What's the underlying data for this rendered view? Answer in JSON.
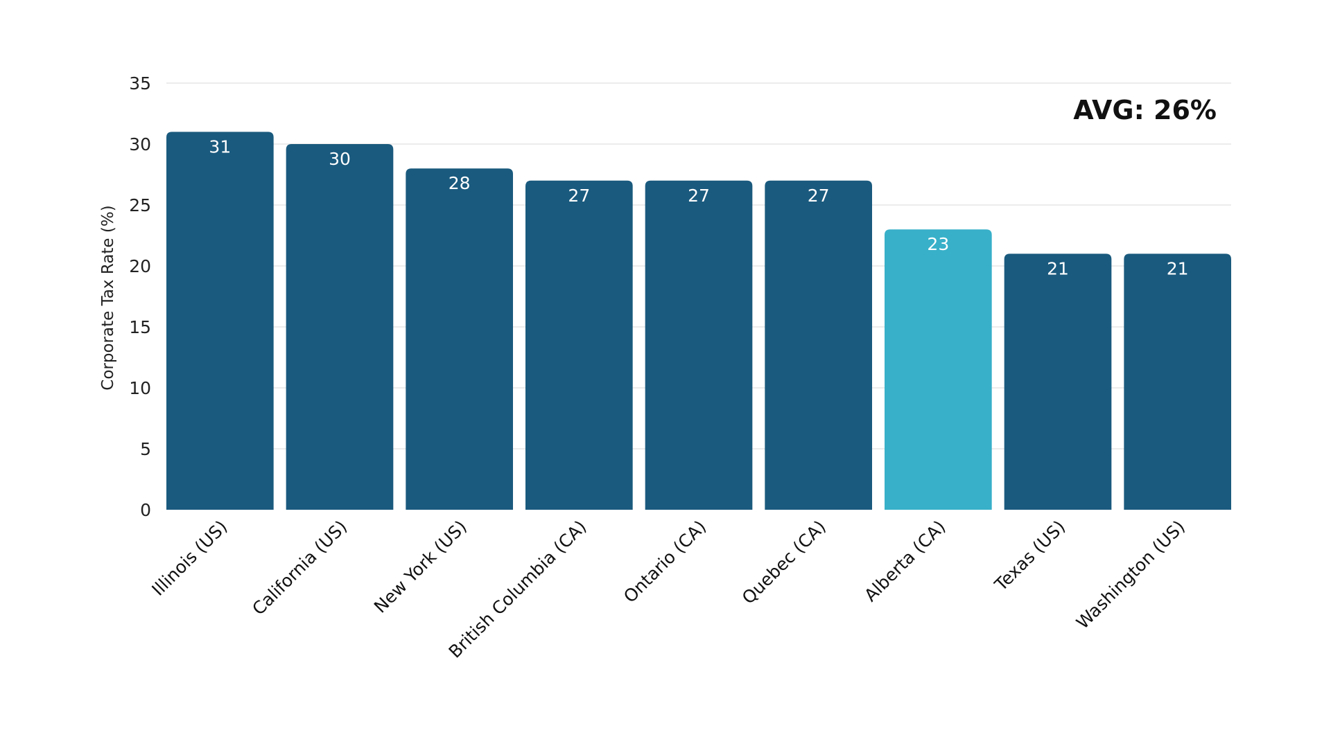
{
  "chart_data": {
    "type": "bar",
    "title": "",
    "xlabel": "",
    "ylabel": "Corporate Tax Rate (%)",
    "ylim": [
      0,
      35
    ],
    "yticks": [
      0,
      5,
      10,
      15,
      20,
      25,
      30,
      35
    ],
    "grid": true,
    "categories": [
      "Illinois (US)",
      "California (US)",
      "New York (US)",
      "British Columbia (CA)",
      "Ontario (CA)",
      "Quebec (CA)",
      "Alberta (CA)",
      "Texas (US)",
      "Washington (US)"
    ],
    "values": [
      31,
      30,
      28,
      27,
      27,
      27,
      23,
      21,
      21
    ],
    "highlight_category": "Alberta (CA)",
    "colors": {
      "bar": "#1a5a7e",
      "highlight": "#38b0c9",
      "grid": "#e6e6e6"
    },
    "annotation": "AVG: 26%"
  }
}
